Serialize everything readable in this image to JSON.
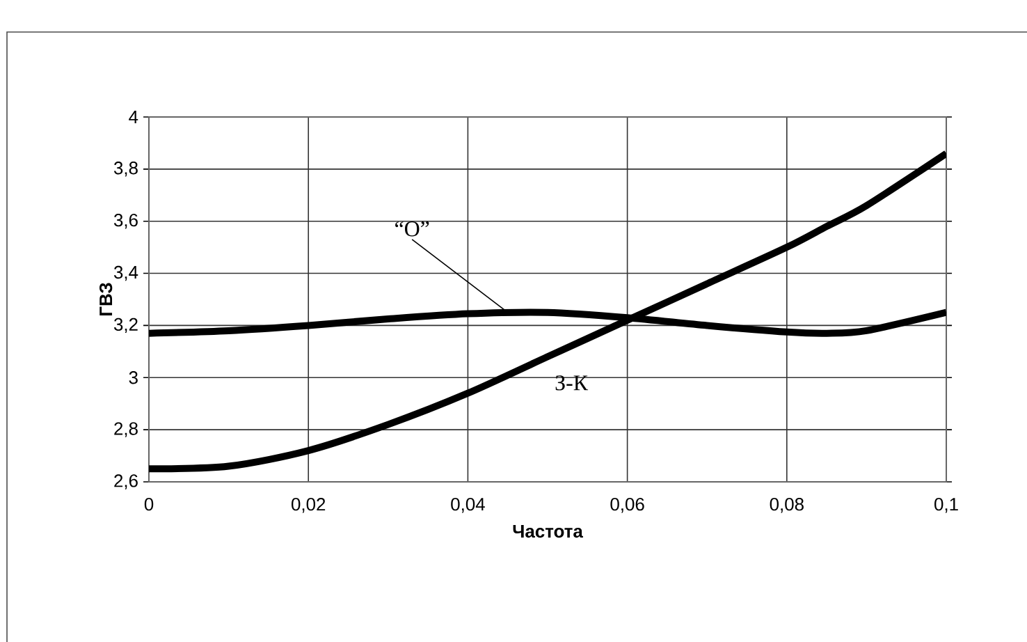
{
  "chart_data": {
    "type": "line",
    "xlabel": "Частота",
    "ylabel": "ГВЗ",
    "x": [
      0,
      0.01,
      0.02,
      0.03,
      0.04,
      0.05,
      0.06,
      0.07,
      0.08,
      0.085,
      0.09,
      0.1
    ],
    "series": [
      {
        "name": "“O”",
        "color": "#000000",
        "values": [
          3.17,
          3.18,
          3.2,
          3.225,
          3.245,
          3.25,
          3.23,
          3.2,
          3.175,
          3.17,
          3.18,
          3.25
        ]
      },
      {
        "name": "З-К",
        "color": "#000000",
        "values": [
          2.65,
          2.66,
          2.72,
          2.82,
          2.94,
          3.08,
          3.22,
          3.36,
          3.5,
          3.58,
          3.66,
          3.86
        ]
      }
    ],
    "xlim": [
      0,
      0.1
    ],
    "xticks": [
      {
        "value": 0,
        "label": "0"
      },
      {
        "value": 0.02,
        "label": "0,02"
      },
      {
        "value": 0.04,
        "label": "0,04"
      },
      {
        "value": 0.06,
        "label": "0,06"
      },
      {
        "value": 0.08,
        "label": "0,08"
      },
      {
        "value": 0.1,
        "label": "0,1"
      }
    ],
    "ylim": [
      2.6,
      4
    ],
    "yticks": [
      {
        "value": 2.6,
        "label": "2,6"
      },
      {
        "value": 2.8,
        "label": "2,8"
      },
      {
        "value": 3,
        "label": "3"
      },
      {
        "value": 3.2,
        "label": "3,2"
      },
      {
        "value": 3.4,
        "label": "3,4"
      },
      {
        "value": 3.6,
        "label": "3,6"
      },
      {
        "value": 3.8,
        "label": "3,8"
      },
      {
        "value": 4,
        "label": "4"
      }
    ],
    "grid": true,
    "legend": false,
    "marker": "none",
    "line_style": "solid"
  }
}
